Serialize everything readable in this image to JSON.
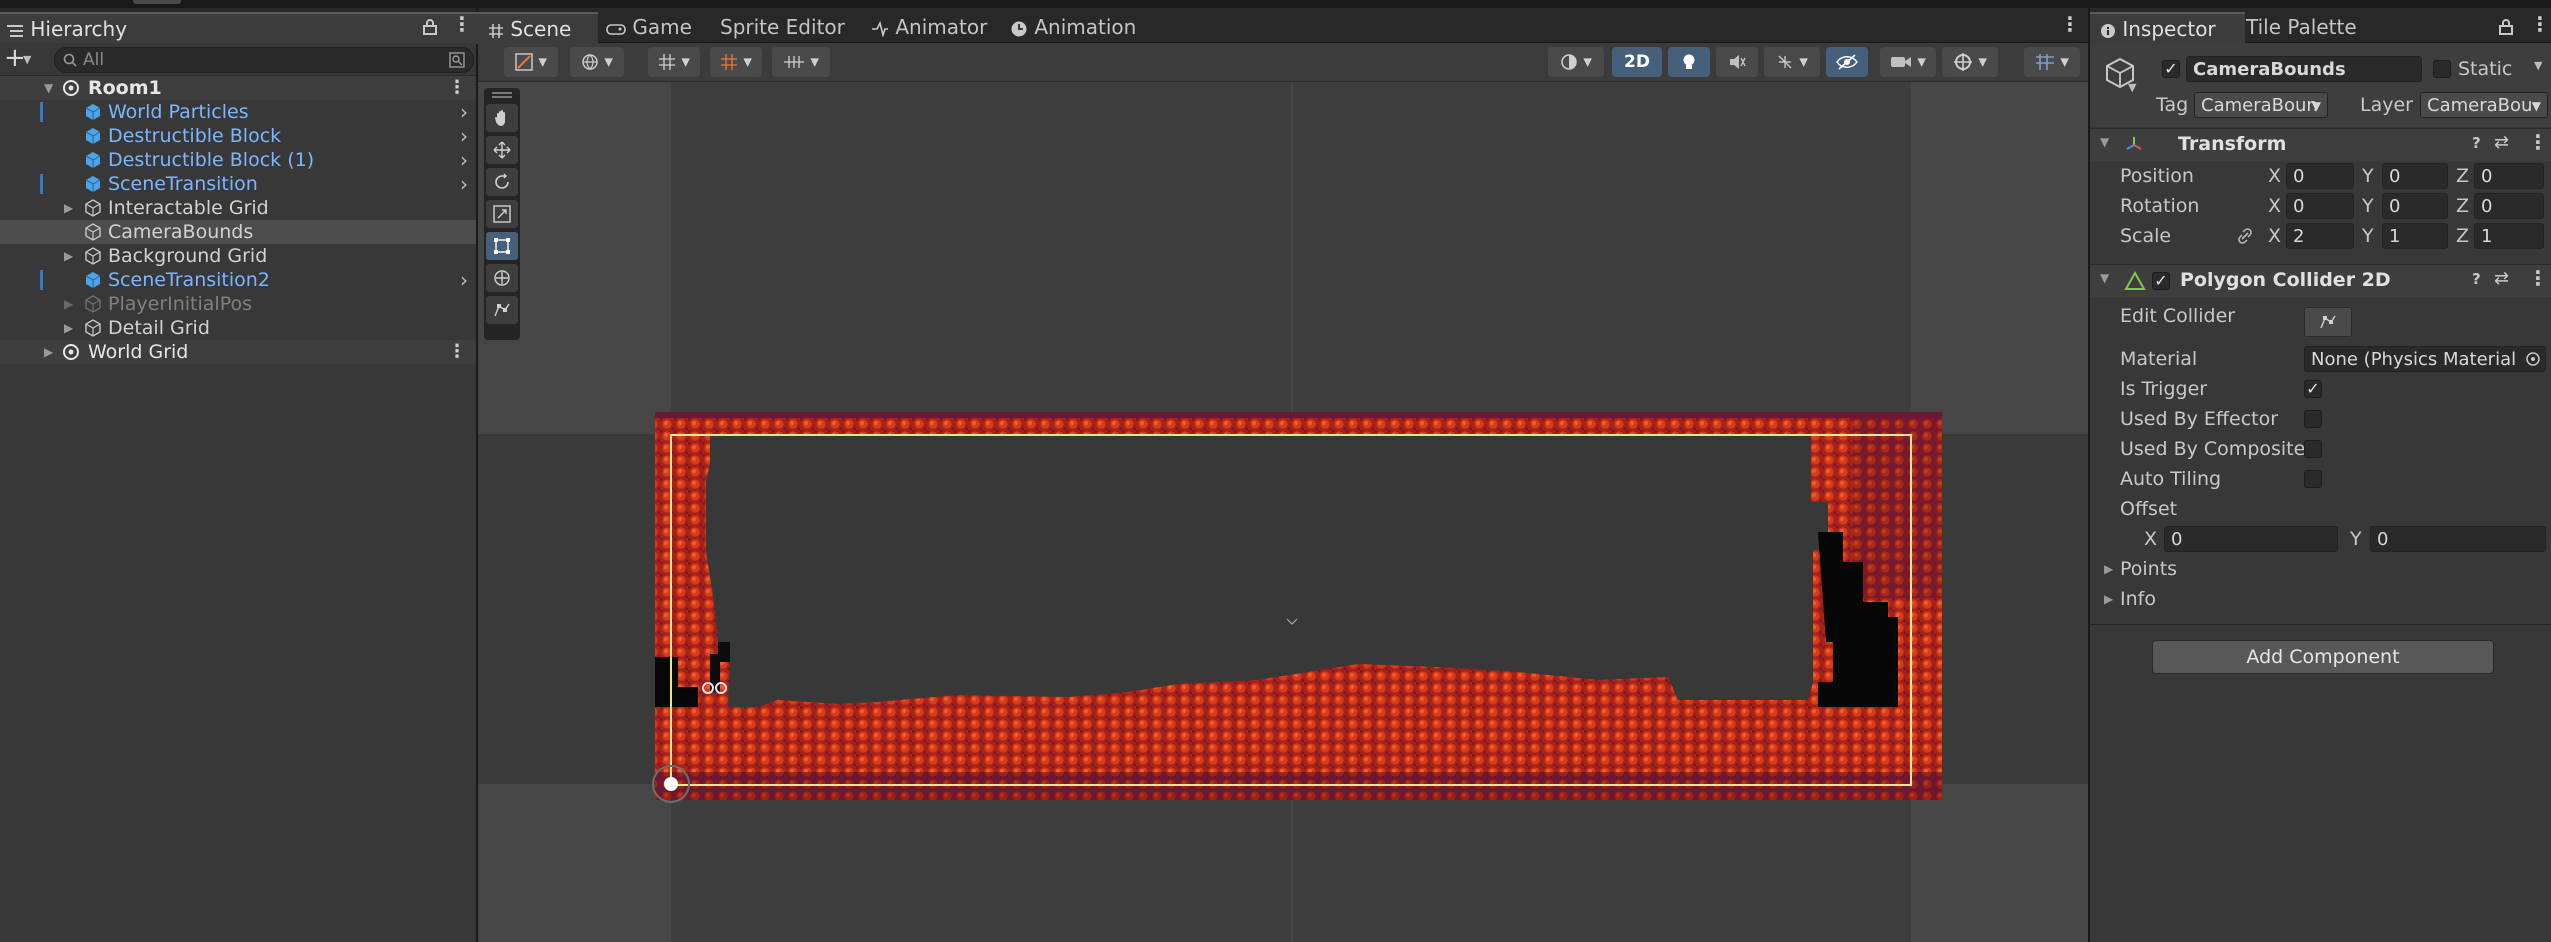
{
  "hierarchy": {
    "tab_label": "Hierarchy",
    "search_placeholder": "All",
    "add_label": "+",
    "items": [
      {
        "label": "Room1",
        "color": "#e6e6e6"
      },
      {
        "label": "World Particles",
        "color": "#7cb6ff"
      },
      {
        "label": "Destructible Block",
        "color": "#7cb6ff"
      },
      {
        "label": "Destructible Block (1)",
        "color": "#7cb6ff"
      },
      {
        "label": "SceneTransition",
        "color": "#7cb6ff"
      },
      {
        "label": "Interactable Grid",
        "color": "#d2d2d2"
      },
      {
        "label": "CameraBounds",
        "color": "#d2d2d2"
      },
      {
        "label": "Background Grid",
        "color": "#d2d2d2"
      },
      {
        "label": "SceneTransition2",
        "color": "#7cb6ff"
      },
      {
        "label": "PlayerInitialPos",
        "color": "#808080"
      },
      {
        "label": "Detail Grid",
        "color": "#d2d2d2"
      },
      {
        "label": "World Grid",
        "color": "#e6e6e6"
      }
    ]
  },
  "scene_panel": {
    "tabs": [
      {
        "label": "Scene",
        "icon": "grid-icon"
      },
      {
        "label": "Game",
        "icon": "gamepad-icon"
      },
      {
        "label": "Sprite Editor",
        "icon": ""
      },
      {
        "label": "Animator",
        "icon": "animator-icon"
      },
      {
        "label": "Animation",
        "icon": "clock-icon"
      }
    ],
    "mode_2d_label": "2D",
    "tools": [
      "hand-tool-icon",
      "move-tool-icon",
      "rotate-tool-icon",
      "scale-tool-icon",
      "rect-tool-icon",
      "transform-tool-icon",
      "custom-tool-icon"
    ],
    "colors": {
      "lava": "#b8281c",
      "lava_dark": "#7a1a2e",
      "bounds": "#e6e49a"
    }
  },
  "inspector": {
    "tabs": [
      {
        "label": "Inspector"
      },
      {
        "label": "Tile Palette"
      }
    ],
    "object_name": "CameraBounds",
    "static_label": "Static",
    "tag_label": "Tag",
    "tag_value": "CameraBoun",
    "layer_label": "Layer",
    "layer_value": "CameraBou",
    "transform": {
      "title": "Transform",
      "rows": [
        {
          "label": "Position",
          "x": "0",
          "y": "0",
          "z": "0"
        },
        {
          "label": "Rotation",
          "x": "0",
          "y": "0",
          "z": "0"
        },
        {
          "label": "Scale",
          "x": "2",
          "y": "1",
          "z": "1"
        }
      ]
    },
    "collider": {
      "title": "Polygon Collider 2D",
      "edit_collider_label": "Edit Collider",
      "material_label": "Material",
      "material_value": "None (Physics Material",
      "is_trigger_label": "Is Trigger",
      "is_trigger": true,
      "used_by_effector_label": "Used By Effector",
      "used_by_composite_label": "Used By Composite",
      "auto_tiling_label": "Auto Tiling",
      "offset_label": "Offset",
      "offset_x": "0",
      "offset_y": "0",
      "points_label": "Points",
      "info_label": "Info"
    },
    "add_component_label": "Add Component",
    "axis_x": "X",
    "axis_y": "Y",
    "axis_z": "Z"
  }
}
